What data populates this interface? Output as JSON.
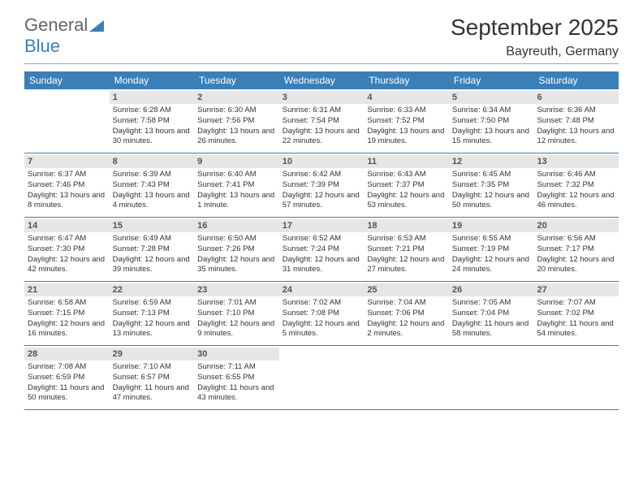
{
  "logo": {
    "part1": "General",
    "part2": "Blue"
  },
  "title": "September 2025",
  "subtitle": "Bayreuth, Germany",
  "day_headers": [
    "Sunday",
    "Monday",
    "Tuesday",
    "Wednesday",
    "Thursday",
    "Friday",
    "Saturday"
  ],
  "colors": {
    "accent": "#3a7fb8",
    "daynum_bg": "#e6e6e6",
    "text": "#333333",
    "background": "#ffffff"
  },
  "calendar": {
    "start_offset": 1,
    "days": [
      {
        "n": 1,
        "sunrise": "6:28 AM",
        "sunset": "7:58 PM",
        "daylight": "13 hours and 30 minutes."
      },
      {
        "n": 2,
        "sunrise": "6:30 AM",
        "sunset": "7:56 PM",
        "daylight": "13 hours and 26 minutes."
      },
      {
        "n": 3,
        "sunrise": "6:31 AM",
        "sunset": "7:54 PM",
        "daylight": "13 hours and 22 minutes."
      },
      {
        "n": 4,
        "sunrise": "6:33 AM",
        "sunset": "7:52 PM",
        "daylight": "13 hours and 19 minutes."
      },
      {
        "n": 5,
        "sunrise": "6:34 AM",
        "sunset": "7:50 PM",
        "daylight": "13 hours and 15 minutes."
      },
      {
        "n": 6,
        "sunrise": "6:36 AM",
        "sunset": "7:48 PM",
        "daylight": "13 hours and 12 minutes."
      },
      {
        "n": 7,
        "sunrise": "6:37 AM",
        "sunset": "7:46 PM",
        "daylight": "13 hours and 8 minutes."
      },
      {
        "n": 8,
        "sunrise": "6:39 AM",
        "sunset": "7:43 PM",
        "daylight": "13 hours and 4 minutes."
      },
      {
        "n": 9,
        "sunrise": "6:40 AM",
        "sunset": "7:41 PM",
        "daylight": "13 hours and 1 minute."
      },
      {
        "n": 10,
        "sunrise": "6:42 AM",
        "sunset": "7:39 PM",
        "daylight": "12 hours and 57 minutes."
      },
      {
        "n": 11,
        "sunrise": "6:43 AM",
        "sunset": "7:37 PM",
        "daylight": "12 hours and 53 minutes."
      },
      {
        "n": 12,
        "sunrise": "6:45 AM",
        "sunset": "7:35 PM",
        "daylight": "12 hours and 50 minutes."
      },
      {
        "n": 13,
        "sunrise": "6:46 AM",
        "sunset": "7:32 PM",
        "daylight": "12 hours and 46 minutes."
      },
      {
        "n": 14,
        "sunrise": "6:47 AM",
        "sunset": "7:30 PM",
        "daylight": "12 hours and 42 minutes."
      },
      {
        "n": 15,
        "sunrise": "6:49 AM",
        "sunset": "7:28 PM",
        "daylight": "12 hours and 39 minutes."
      },
      {
        "n": 16,
        "sunrise": "6:50 AM",
        "sunset": "7:26 PM",
        "daylight": "12 hours and 35 minutes."
      },
      {
        "n": 17,
        "sunrise": "6:52 AM",
        "sunset": "7:24 PM",
        "daylight": "12 hours and 31 minutes."
      },
      {
        "n": 18,
        "sunrise": "6:53 AM",
        "sunset": "7:21 PM",
        "daylight": "12 hours and 27 minutes."
      },
      {
        "n": 19,
        "sunrise": "6:55 AM",
        "sunset": "7:19 PM",
        "daylight": "12 hours and 24 minutes."
      },
      {
        "n": 20,
        "sunrise": "6:56 AM",
        "sunset": "7:17 PM",
        "daylight": "12 hours and 20 minutes."
      },
      {
        "n": 21,
        "sunrise": "6:58 AM",
        "sunset": "7:15 PM",
        "daylight": "12 hours and 16 minutes."
      },
      {
        "n": 22,
        "sunrise": "6:59 AM",
        "sunset": "7:13 PM",
        "daylight": "12 hours and 13 minutes."
      },
      {
        "n": 23,
        "sunrise": "7:01 AM",
        "sunset": "7:10 PM",
        "daylight": "12 hours and 9 minutes."
      },
      {
        "n": 24,
        "sunrise": "7:02 AM",
        "sunset": "7:08 PM",
        "daylight": "12 hours and 5 minutes."
      },
      {
        "n": 25,
        "sunrise": "7:04 AM",
        "sunset": "7:06 PM",
        "daylight": "12 hours and 2 minutes."
      },
      {
        "n": 26,
        "sunrise": "7:05 AM",
        "sunset": "7:04 PM",
        "daylight": "11 hours and 58 minutes."
      },
      {
        "n": 27,
        "sunrise": "7:07 AM",
        "sunset": "7:02 PM",
        "daylight": "11 hours and 54 minutes."
      },
      {
        "n": 28,
        "sunrise": "7:08 AM",
        "sunset": "6:59 PM",
        "daylight": "11 hours and 50 minutes."
      },
      {
        "n": 29,
        "sunrise": "7:10 AM",
        "sunset": "6:57 PM",
        "daylight": "11 hours and 47 minutes."
      },
      {
        "n": 30,
        "sunrise": "7:11 AM",
        "sunset": "6:55 PM",
        "daylight": "11 hours and 43 minutes."
      }
    ]
  },
  "labels": {
    "sunrise_prefix": "Sunrise: ",
    "sunset_prefix": "Sunset: ",
    "daylight_prefix": "Daylight: "
  }
}
